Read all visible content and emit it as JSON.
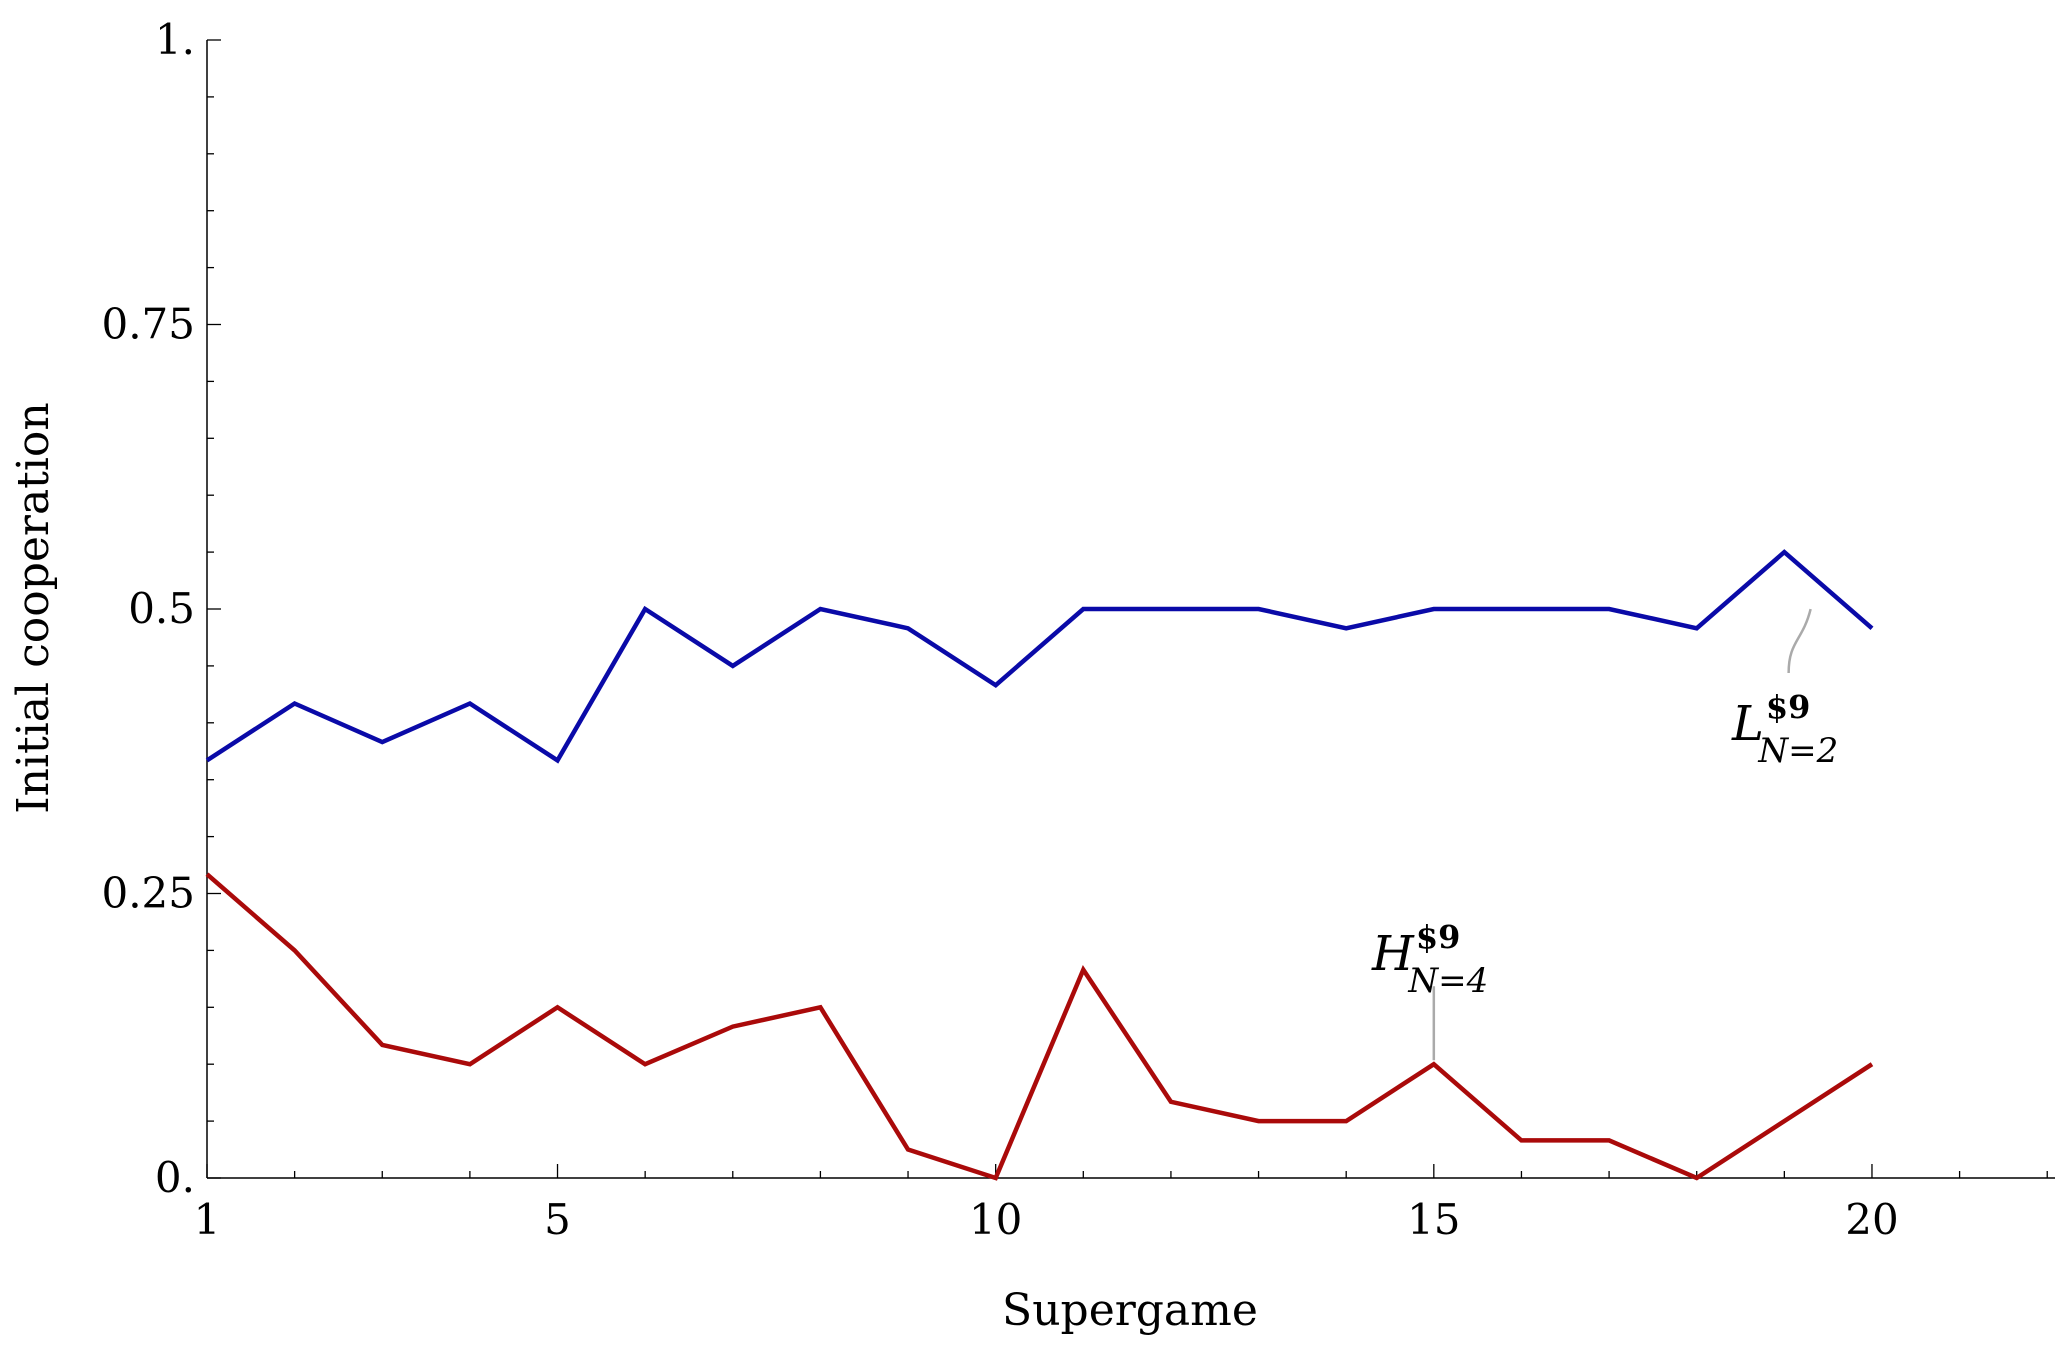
{
  "chart_data": {
    "type": "line",
    "title": "",
    "xlabel": "Supergame",
    "ylabel": "Initial cooperation",
    "xlim": [
      1,
      22
    ],
    "ylim": [
      0,
      1
    ],
    "x_ticks": [
      1,
      5,
      10,
      15,
      20
    ],
    "x_tick_labels": [
      "1",
      "5",
      "10",
      "15",
      "20"
    ],
    "y_ticks": [
      0,
      0.25,
      0.5,
      0.75,
      1
    ],
    "y_tick_labels": [
      "0.",
      "0.25",
      "0.5",
      "0.75",
      "1."
    ],
    "grid": false,
    "x": [
      1,
      2,
      3,
      4,
      5,
      6,
      7,
      8,
      9,
      10,
      11,
      12,
      13,
      14,
      15,
      16,
      17,
      18,
      19,
      20
    ],
    "series": [
      {
        "name_base": "L",
        "name_sup": "$9",
        "name_sub": "N=2",
        "color": "#0a0aa8",
        "values": [
          0.367,
          0.417,
          0.383,
          0.417,
          0.367,
          0.5,
          0.45,
          0.5,
          0.483,
          0.433,
          0.5,
          0.5,
          0.5,
          0.483,
          0.5,
          0.5,
          0.5,
          0.483,
          0.55,
          0.483
        ],
        "label_anchor_x": 19.3
      },
      {
        "name_base": "H",
        "name_sup": "$9",
        "name_sub": "N=4",
        "color": "#aa0a0a",
        "values": [
          0.267,
          0.2,
          0.117,
          0.1,
          0.15,
          0.1,
          0.133,
          0.15,
          0.025,
          0.0,
          0.183,
          0.067,
          0.05,
          0.05,
          0.1,
          0.033,
          0.033,
          0.0,
          0.05,
          0.1
        ],
        "label_anchor_x": 15
      }
    ]
  }
}
